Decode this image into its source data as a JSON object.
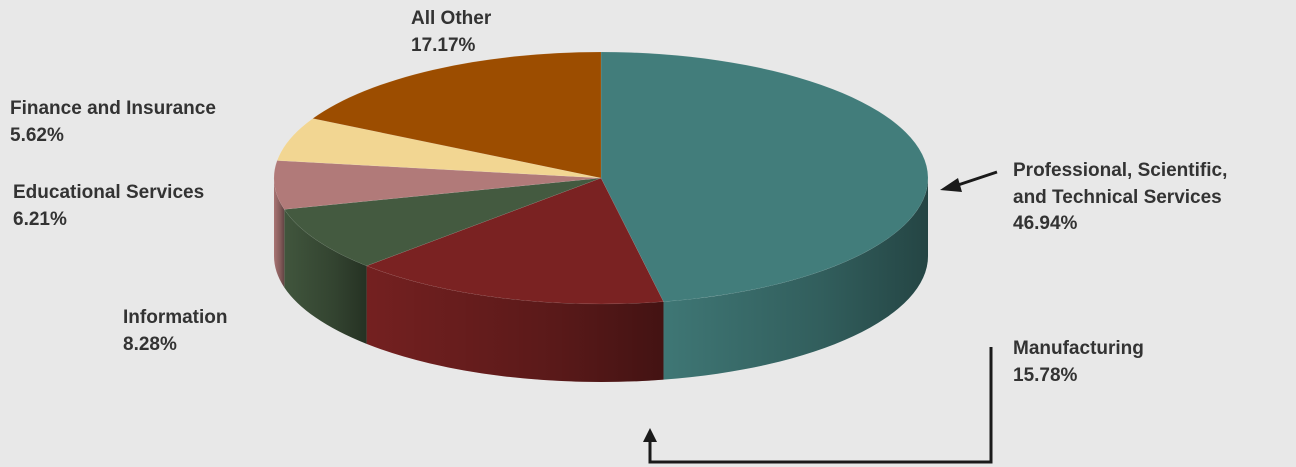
{
  "chart_data": {
    "type": "pie",
    "style": "3d",
    "slices": [
      {
        "label": "Professional, Scientific, and Technical Services",
        "label_lines": [
          "Professional, Scientific,",
          "and Technical Services"
        ],
        "value": 46.94,
        "display": "46.94%",
        "color": "#427d7b"
      },
      {
        "label": "Manufacturing",
        "label_lines": [
          "Manufacturing"
        ],
        "value": 15.78,
        "display": "15.78%",
        "color": "#7a2222"
      },
      {
        "label": "Information",
        "label_lines": [
          "Information"
        ],
        "value": 8.28,
        "display": "8.28%",
        "color": "#445a40"
      },
      {
        "label": "Educational Services",
        "label_lines": [
          "Educational Services"
        ],
        "value": 6.21,
        "display": "6.21%",
        "color": "#b17a79"
      },
      {
        "label": "Finance and Insurance",
        "label_lines": [
          "Finance and Insurance"
        ],
        "value": 5.62,
        "display": "5.62%",
        "color": "#f2d692"
      },
      {
        "label": "All Other",
        "label_lines": [
          "All Other"
        ],
        "value": 17.17,
        "display": "17.17%",
        "color": "#9c4d00"
      }
    ]
  }
}
